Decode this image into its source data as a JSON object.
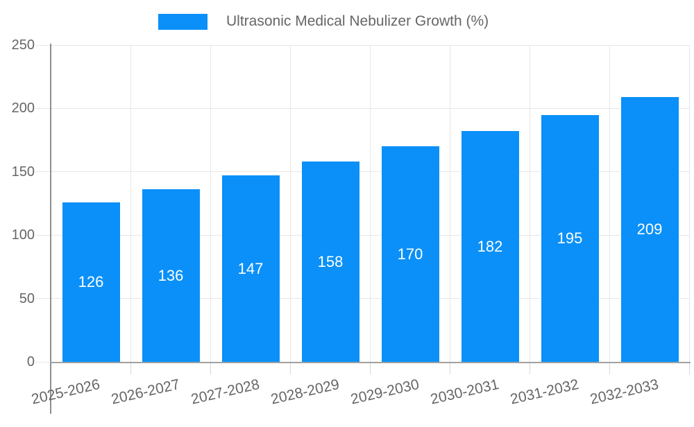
{
  "legend": {
    "label": "Ultrasonic Medical Nebulizer Growth (%)"
  },
  "chart_data": {
    "type": "bar",
    "title": "",
    "xlabel": "",
    "ylabel": "",
    "categories": [
      "2025-2026",
      "2026-2027",
      "2027-2028",
      "2028-2029",
      "2029-2030",
      "2030-2031",
      "2031-2032",
      "2032-2033"
    ],
    "series": [
      {
        "name": "Ultrasonic Medical Nebulizer Growth (%)",
        "values": [
          126,
          136,
          147,
          158,
          170,
          182,
          195,
          209
        ]
      }
    ],
    "value_labels_shown": true,
    "ylim": [
      0,
      250
    ],
    "yticks": [
      0,
      50,
      100,
      150,
      200,
      250
    ],
    "grid": true,
    "legend_position": "top-center",
    "colors": {
      "bar": "#0a90f8",
      "bar_value_text": "#ffffff",
      "axis_text": "#666666",
      "grid_line": "#e7e7e7",
      "axis_line": "#a0a0a0",
      "tick_line": "#d6d6d6"
    }
  }
}
